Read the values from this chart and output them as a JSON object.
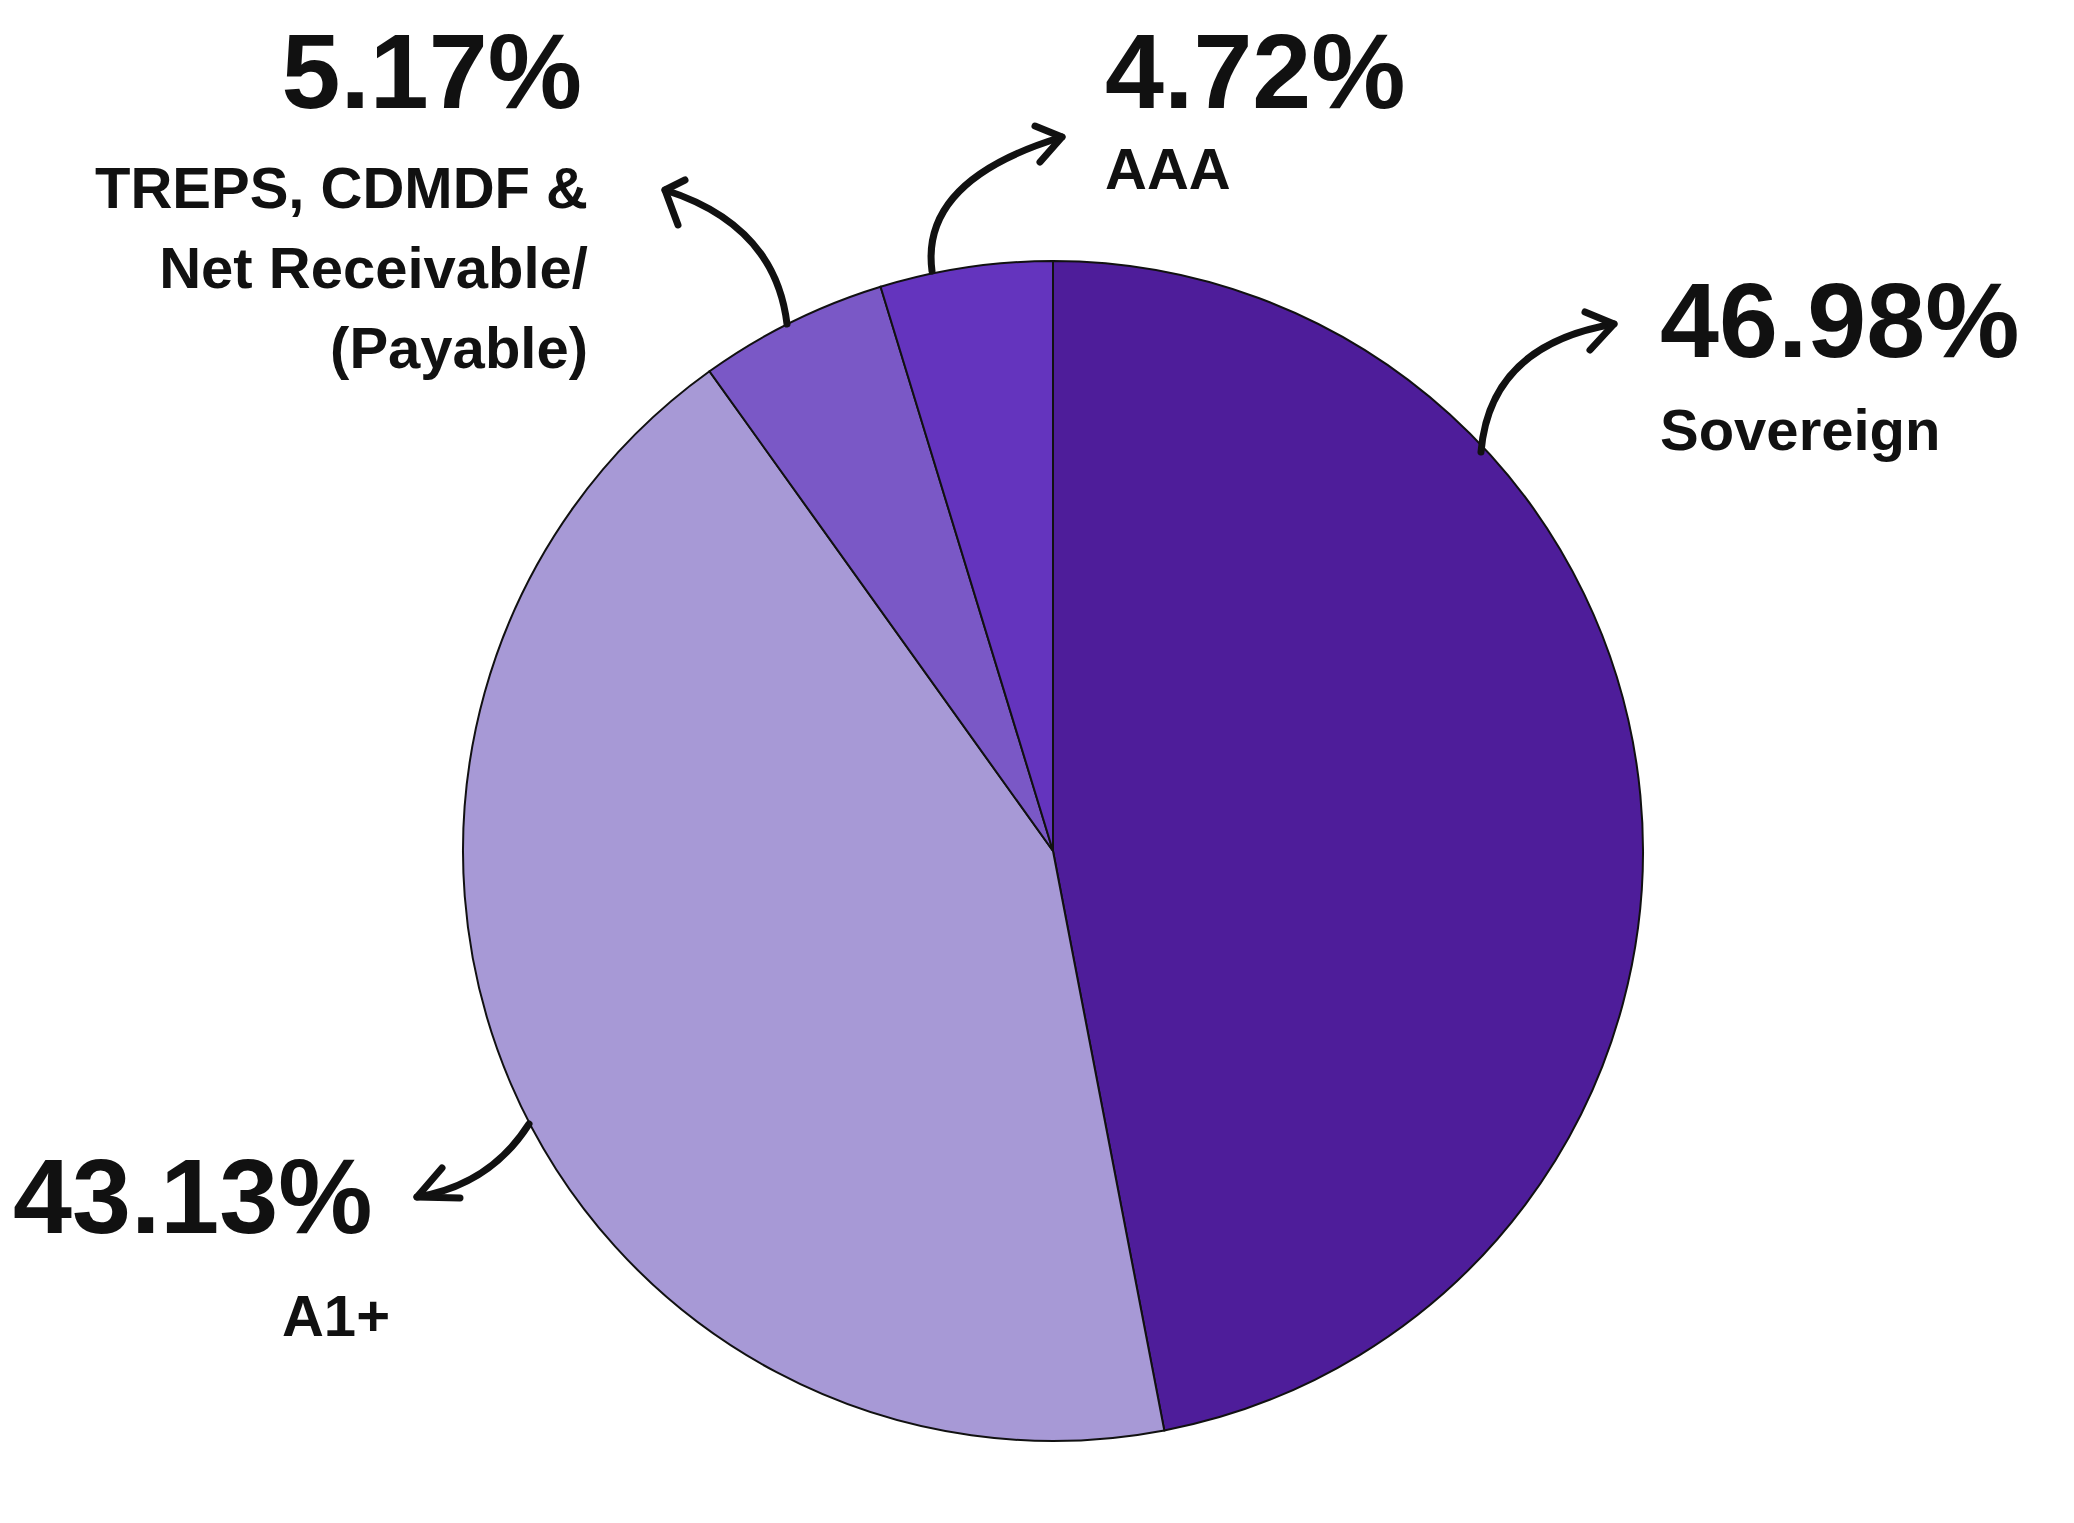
{
  "chart_data": {
    "type": "pie",
    "categories": [
      "Sovereign",
      "A1+",
      "TREPS, CDMDF & Net Receivable/ (Payable)",
      "AAA"
    ],
    "values": [
      46.98,
      43.13,
      5.17,
      4.72
    ],
    "colors": [
      "#4e1d9a",
      "#a799d6",
      "#7a58c6",
      "#6434be"
    ],
    "value_labels": [
      "46.98%",
      "43.13%",
      "5.17%",
      "4.72%"
    ]
  }
}
